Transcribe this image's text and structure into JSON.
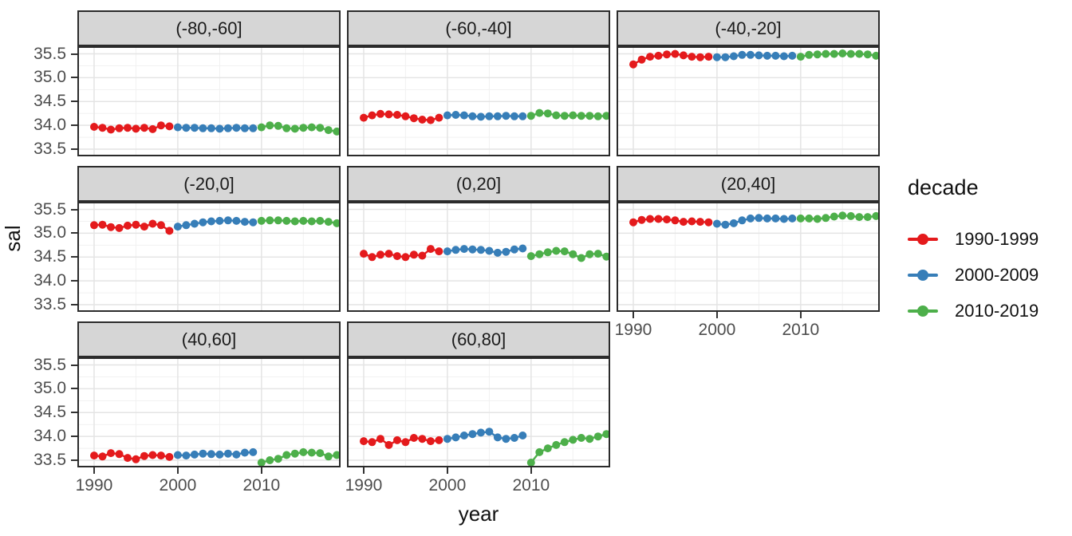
{
  "chart_data": {
    "type": "line",
    "title": "",
    "xlabel": "year",
    "ylabel": "sal",
    "legend_title": "decade",
    "legend_position": "right",
    "grid": true,
    "x_ticks": [
      1990,
      2000,
      2010
    ],
    "x_minor_ticks": [
      1995,
      2005,
      2015
    ],
    "y_ticks": [
      33.5,
      34.0,
      34.5,
      35.0,
      35.5
    ],
    "y_minor_ticks": [
      33.75,
      34.25,
      34.75,
      35.25
    ],
    "x_range": [
      1988.0,
      2019.45
    ],
    "y_range": [
      33.35,
      35.66
    ],
    "series_defs": [
      {
        "name": "1990-1999",
        "color": "#E41A1C",
        "years": [
          1990,
          1991,
          1992,
          1993,
          1994,
          1995,
          1996,
          1997,
          1998,
          1999
        ]
      },
      {
        "name": "2000-2009",
        "color": "#377EB8",
        "years": [
          2000,
          2001,
          2002,
          2003,
          2004,
          2005,
          2006,
          2007,
          2008,
          2009
        ]
      },
      {
        "name": "2010-2019",
        "color": "#4DAF4A",
        "years": [
          2010,
          2011,
          2012,
          2013,
          2014,
          2015,
          2016,
          2017,
          2018,
          2019
        ]
      }
    ],
    "facets": [
      {
        "label": "(-80,-60]",
        "series": [
          {
            "name": "1990-1999",
            "y": [
              33.97,
              33.95,
              33.91,
              33.94,
              33.95,
              33.93,
              33.95,
              33.92,
              34.0,
              33.98
            ]
          },
          {
            "name": "2000-2009",
            "y": [
              33.96,
              33.95,
              33.95,
              33.94,
              33.94,
              33.93,
              33.94,
              33.95,
              33.94,
              33.94
            ]
          },
          {
            "name": "2010-2019",
            "y": [
              33.96,
              34.0,
              33.99,
              33.94,
              33.93,
              33.95,
              33.96,
              33.95,
              33.9,
              33.87
            ]
          }
        ]
      },
      {
        "label": "(-60,-40]",
        "series": [
          {
            "name": "1990-1999",
            "y": [
              34.16,
              34.21,
              34.24,
              34.23,
              34.22,
              34.19,
              34.15,
              34.12,
              34.11,
              34.16
            ]
          },
          {
            "name": "2000-2009",
            "y": [
              34.21,
              34.22,
              34.21,
              34.19,
              34.18,
              34.19,
              34.19,
              34.2,
              34.19,
              34.19
            ]
          },
          {
            "name": "2010-2019",
            "y": [
              34.2,
              34.26,
              34.25,
              34.21,
              34.2,
              34.21,
              34.2,
              34.2,
              34.19,
              34.2
            ]
          }
        ]
      },
      {
        "label": "(-40,-20]",
        "series": [
          {
            "name": "1990-1999",
            "y": [
              35.28,
              35.38,
              35.44,
              35.46,
              35.49,
              35.5,
              35.47,
              35.44,
              35.43,
              35.44
            ]
          },
          {
            "name": "2000-2009",
            "y": [
              35.43,
              35.43,
              35.45,
              35.48,
              35.48,
              35.47,
              35.46,
              35.46,
              35.45,
              35.46
            ]
          },
          {
            "name": "2010-2019",
            "y": [
              35.44,
              35.48,
              35.49,
              35.5,
              35.5,
              35.51,
              35.5,
              35.5,
              35.49,
              35.46
            ]
          }
        ]
      },
      {
        "label": "(-20,0]",
        "series": [
          {
            "name": "1990-1999",
            "y": [
              35.17,
              35.18,
              35.13,
              35.11,
              35.16,
              35.18,
              35.14,
              35.2,
              35.17,
              35.05
            ]
          },
          {
            "name": "2000-2009",
            "y": [
              35.14,
              35.17,
              35.2,
              35.23,
              35.25,
              35.26,
              35.27,
              35.26,
              35.24,
              35.23
            ]
          },
          {
            "name": "2010-2019",
            "y": [
              35.26,
              35.27,
              35.27,
              35.26,
              35.25,
              35.26,
              35.25,
              35.26,
              35.24,
              35.21
            ]
          }
        ]
      },
      {
        "label": "(0,20]",
        "series": [
          {
            "name": "1990-1999",
            "y": [
              34.57,
              34.5,
              34.55,
              34.57,
              34.52,
              34.5,
              34.55,
              34.53,
              34.67,
              34.62
            ]
          },
          {
            "name": "2000-2009",
            "y": [
              34.62,
              34.65,
              34.67,
              34.66,
              34.65,
              34.63,
              34.59,
              34.61,
              34.66,
              34.68
            ]
          },
          {
            "name": "2010-2019",
            "y": [
              34.52,
              34.56,
              34.6,
              34.63,
              34.62,
              34.56,
              34.48,
              34.56,
              34.57,
              34.51
            ]
          }
        ]
      },
      {
        "label": "(20,40]",
        "series": [
          {
            "name": "1990-1999",
            "y": [
              35.23,
              35.28,
              35.3,
              35.3,
              35.29,
              35.27,
              35.24,
              35.25,
              35.24,
              35.23
            ]
          },
          {
            "name": "2000-2009",
            "y": [
              35.2,
              35.18,
              35.21,
              35.27,
              35.31,
              35.32,
              35.31,
              35.31,
              35.3,
              35.31
            ]
          },
          {
            "name": "2010-2019",
            "y": [
              35.31,
              35.31,
              35.3,
              35.32,
              35.35,
              35.37,
              35.36,
              35.34,
              35.34,
              35.36
            ]
          }
        ]
      },
      {
        "label": "(40,60]",
        "series": [
          {
            "name": "1990-1999",
            "y": [
              33.6,
              33.58,
              33.65,
              33.63,
              33.55,
              33.52,
              33.59,
              33.61,
              33.6,
              33.57
            ]
          },
          {
            "name": "2000-2009",
            "y": [
              33.61,
              33.6,
              33.62,
              33.64,
              33.63,
              33.62,
              33.64,
              33.62,
              33.66,
              33.67
            ]
          },
          {
            "name": "2010-2019",
            "y": [
              33.45,
              33.5,
              33.53,
              33.61,
              33.64,
              33.67,
              33.66,
              33.65,
              33.58,
              33.61
            ]
          }
        ]
      },
      {
        "label": "(60,80]",
        "series": [
          {
            "name": "1990-1999",
            "y": [
              33.9,
              33.88,
              33.95,
              33.82,
              33.92,
              33.88,
              33.97,
              33.95,
              33.9,
              33.92
            ]
          },
          {
            "name": "2000-2009",
            "y": [
              33.95,
              33.98,
              34.02,
              34.05,
              34.08,
              34.1,
              33.98,
              33.95,
              33.97,
              34.02
            ]
          },
          {
            "name": "2010-2019",
            "y": [
              33.45,
              33.67,
              33.75,
              33.82,
              33.88,
              33.93,
              33.97,
              33.95,
              34.0,
              34.05
            ]
          }
        ]
      }
    ],
    "colors": {
      "strip_background": "#d6d6d6",
      "panel_border": "#2b2b2b",
      "grid_major": "#e4e4e4",
      "grid_minor": "#f1f1f1",
      "tick_text": "#4d4d4d"
    }
  }
}
